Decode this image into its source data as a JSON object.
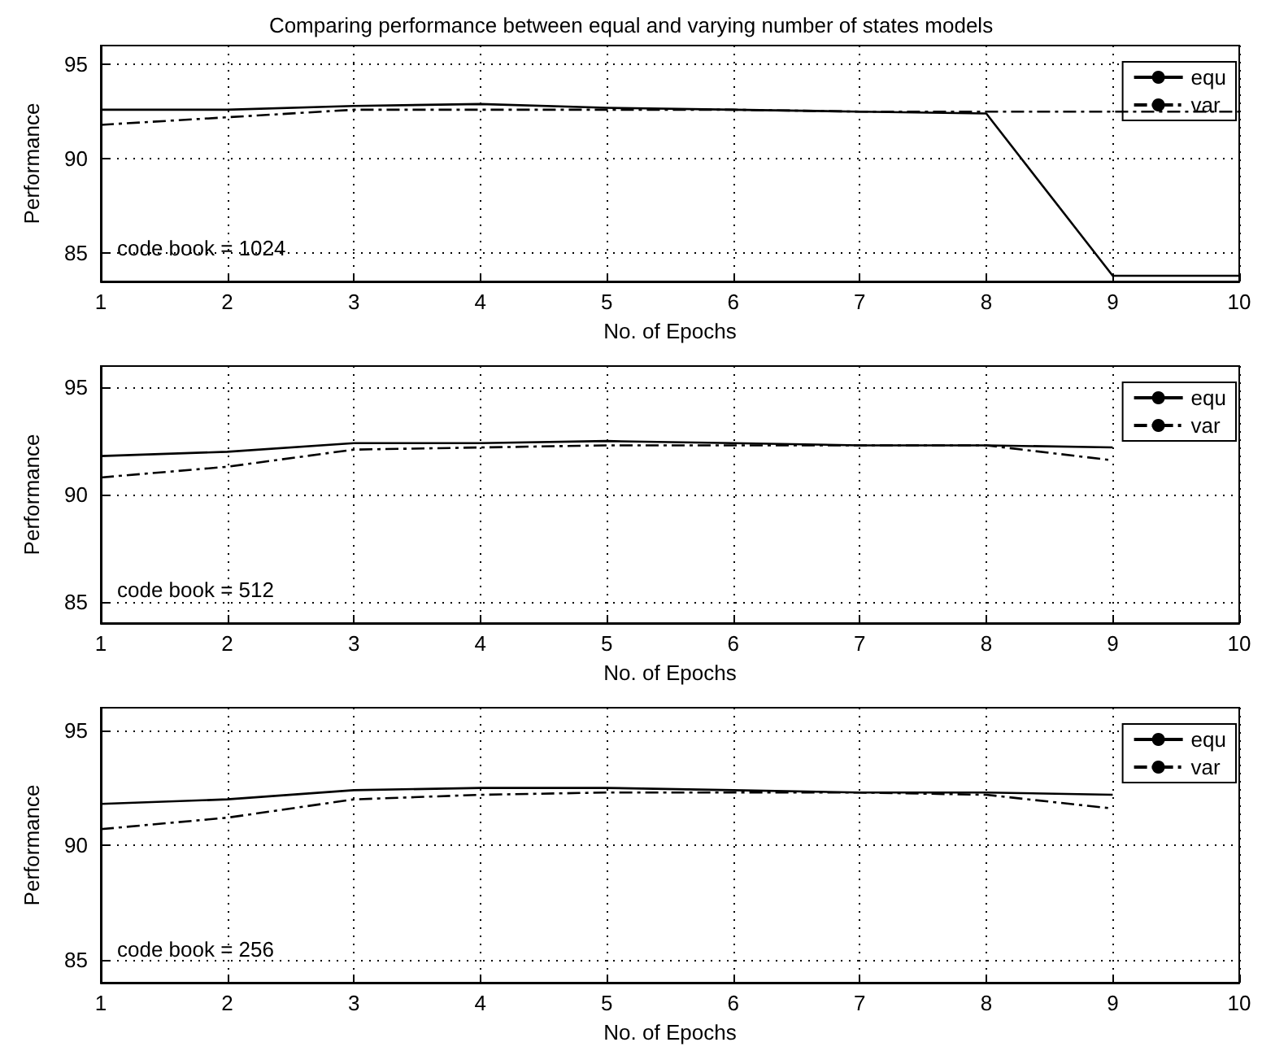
{
  "chart_data": [
    {
      "type": "line",
      "title": "Comparing performance between equal and varying number of states models",
      "xlabel": "No. of Epochs",
      "ylabel": "Performance",
      "annotations": [
        "code book = 1024"
      ],
      "x": [
        1,
        2,
        3,
        4,
        5,
        6,
        7,
        8,
        9,
        10
      ],
      "xlim": [
        1,
        10
      ],
      "xticks": [
        1,
        2,
        3,
        4,
        5,
        6,
        7,
        8,
        9,
        10
      ],
      "ylim": [
        83.5,
        96
      ],
      "yticks": [
        85,
        90,
        95
      ],
      "grid": true,
      "legend": "top right",
      "marker": "none",
      "series": [
        {
          "name": "equ",
          "color": "#000000",
          "line_style": "solid",
          "values": [
            92.6,
            92.6,
            92.8,
            92.9,
            92.7,
            92.6,
            92.5,
            92.4,
            83.8,
            83.8
          ]
        },
        {
          "name": "var",
          "color": "#000000",
          "line_style": "dashed",
          "values": [
            91.8,
            92.2,
            92.6,
            92.6,
            92.6,
            92.6,
            92.5,
            92.5,
            92.5,
            92.5
          ]
        }
      ]
    },
    {
      "type": "line",
      "xlabel": "No. of Epochs",
      "ylabel": "Performance",
      "annotations": [
        "code book = 512"
      ],
      "x": [
        1,
        2,
        3,
        4,
        5,
        6,
        7,
        8,
        9
      ],
      "xlim": [
        1,
        10
      ],
      "xticks": [
        1,
        2,
        3,
        4,
        5,
        6,
        7,
        8,
        9,
        10
      ],
      "ylim": [
        84,
        96
      ],
      "yticks": [
        85,
        90,
        95
      ],
      "grid": true,
      "legend": "top right",
      "marker": "none",
      "series": [
        {
          "name": "equ",
          "color": "#000000",
          "line_style": "solid",
          "values": [
            91.8,
            92.0,
            92.4,
            92.4,
            92.5,
            92.4,
            92.3,
            92.3,
            92.2
          ]
        },
        {
          "name": "var",
          "color": "#000000",
          "line_style": "dashed",
          "values": [
            90.8,
            91.3,
            92.1,
            92.2,
            92.3,
            92.3,
            92.3,
            92.3,
            91.6
          ]
        }
      ]
    },
    {
      "type": "line",
      "xlabel": "No. of Epochs",
      "ylabel": "Performance",
      "annotations": [
        "code book = 256"
      ],
      "x": [
        1,
        2,
        3,
        4,
        5,
        6,
        7,
        8,
        9
      ],
      "xlim": [
        1,
        10
      ],
      "xticks": [
        1,
        2,
        3,
        4,
        5,
        6,
        7,
        8,
        9,
        10
      ],
      "ylim": [
        84,
        96
      ],
      "yticks": [
        85,
        90,
        95
      ],
      "grid": true,
      "legend": "top right",
      "marker": "none",
      "series": [
        {
          "name": "equ",
          "color": "#000000",
          "line_style": "solid",
          "values": [
            91.8,
            92.0,
            92.4,
            92.5,
            92.5,
            92.4,
            92.3,
            92.3,
            92.2
          ]
        },
        {
          "name": "var",
          "color": "#000000",
          "line_style": "dashed",
          "values": [
            90.7,
            91.2,
            92.0,
            92.2,
            92.3,
            92.3,
            92.3,
            92.2,
            91.6
          ]
        }
      ]
    }
  ]
}
